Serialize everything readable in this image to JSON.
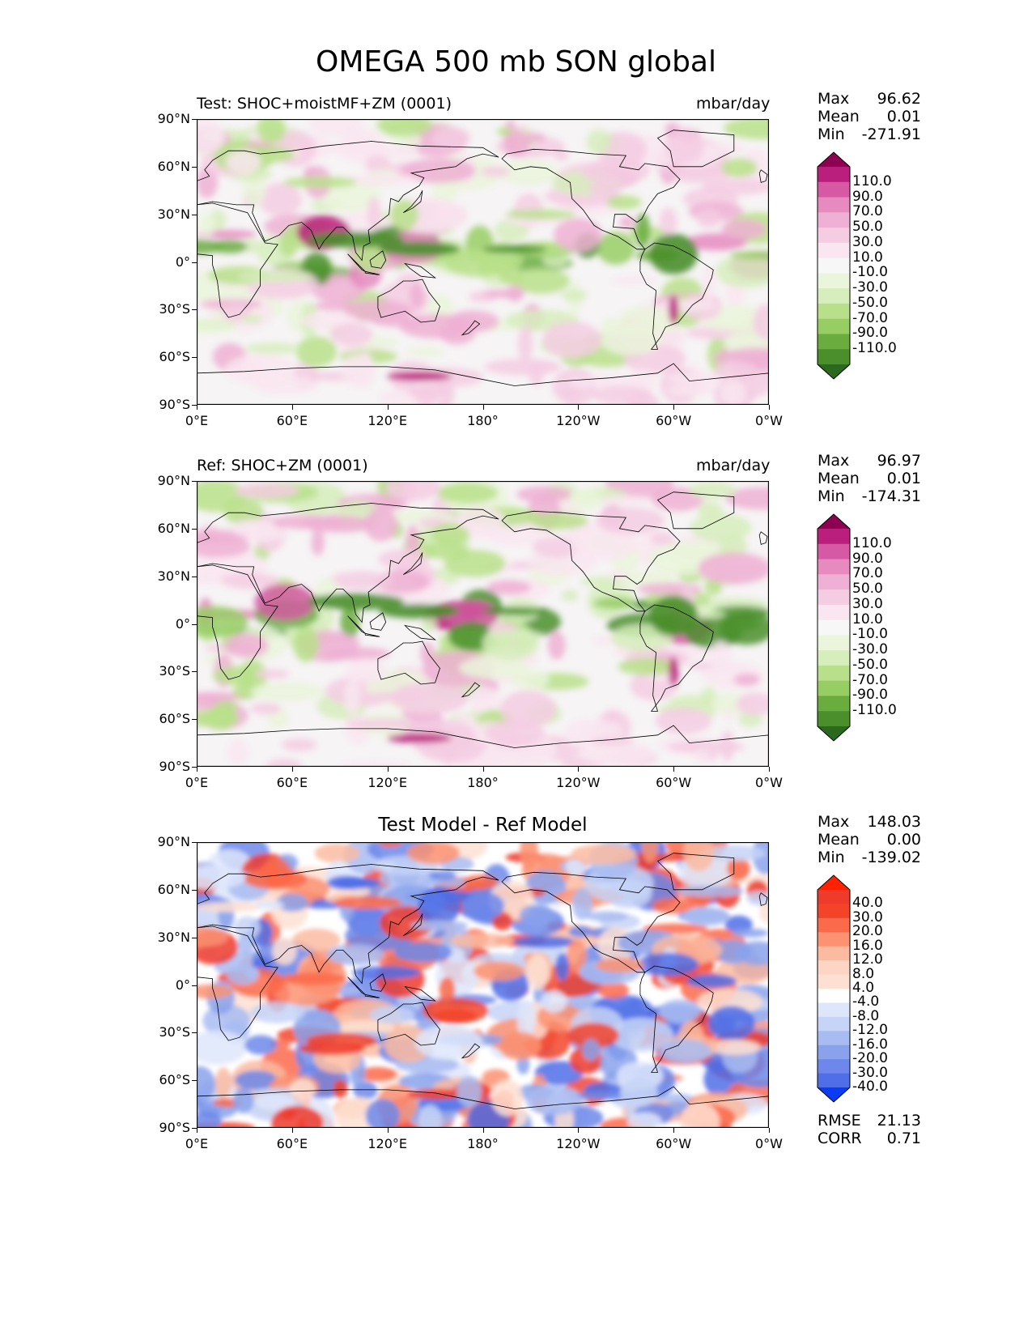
{
  "figure": {
    "title": "OMEGA 500 mb SON global"
  },
  "colors": {
    "pos_scale": [
      "#f7f7f7",
      "#f9e6f0",
      "#f4cde3",
      "#eeb0d4",
      "#e68ac0",
      "#d55aa3",
      "#bb1f7e",
      "#8e0152"
    ],
    "neg_scale": [
      "#f7f7f7",
      "#eaf5db",
      "#d6edbc",
      "#b8e08a",
      "#97ce64",
      "#6aac3e",
      "#4a8f2b",
      "#2b6a1c"
    ],
    "diff_pos": [
      "#ffffff",
      "#fee0d2",
      "#fcbba1",
      "#fc9272",
      "#fb6a4a",
      "#f3442a",
      "#ef3b2c",
      "#ff2200"
    ],
    "diff_neg": [
      "#ffffff",
      "#dee6fb",
      "#c6d4f7",
      "#a9bcf2",
      "#8aa2ec",
      "#6d88ea",
      "#4f6ee8",
      "#0b3cf5"
    ],
    "coast": "#000000"
  },
  "chart_data": [
    {
      "type": "heatmap",
      "id": "test",
      "title_left": "Test: SHOC+moistMF+ZM (0001)",
      "title_right": "mbar/day",
      "title_center": "",
      "yticks": [
        "90°N",
        "60°N",
        "30°N",
        "0°",
        "30°S",
        "60°S",
        "90°S"
      ],
      "xticks": [
        "0°E",
        "60°E",
        "120°E",
        "180°",
        "120°W",
        "60°W",
        "0°W"
      ],
      "stats": {
        "max_label": "Max",
        "max": "96.62",
        "mean_label": "Mean",
        "mean": "0.01",
        "min_label": "Min",
        "min": "-271.91"
      },
      "colorbar": {
        "levels": [
          "110.0",
          "90.0",
          "70.0",
          "50.0",
          "30.0",
          "10.0",
          "-10.0",
          "-30.0",
          "-50.0",
          "-70.0",
          "-90.0",
          "-110.0"
        ],
        "colors": [
          "#8e0152",
          "#bb1f7e",
          "#d55aa3",
          "#e68ac0",
          "#eeb0d4",
          "#f4cde3",
          "#f9e6f0",
          "#f7f7f7",
          "#eaf5db",
          "#d6edbc",
          "#b8e08a",
          "#97ce64",
          "#6aac3e",
          "#4a8f2b",
          "#2b6a1c"
        ]
      }
    },
    {
      "type": "heatmap",
      "id": "ref",
      "title_left": "Ref: SHOC+ZM (0001)",
      "title_right": "mbar/day",
      "title_center": "",
      "yticks": [
        "90°N",
        "60°N",
        "30°N",
        "0°",
        "30°S",
        "60°S",
        "90°S"
      ],
      "xticks": [
        "0°E",
        "60°E",
        "120°E",
        "180°",
        "120°W",
        "60°W",
        "0°W"
      ],
      "stats": {
        "max_label": "Max",
        "max": "96.97",
        "mean_label": "Mean",
        "mean": "0.01",
        "min_label": "Min",
        "min": "-174.31"
      },
      "colorbar": {
        "levels": [
          "110.0",
          "90.0",
          "70.0",
          "50.0",
          "30.0",
          "10.0",
          "-10.0",
          "-30.0",
          "-50.0",
          "-70.0",
          "-90.0",
          "-110.0"
        ],
        "colors": [
          "#8e0152",
          "#bb1f7e",
          "#d55aa3",
          "#e68ac0",
          "#eeb0d4",
          "#f4cde3",
          "#f9e6f0",
          "#f7f7f7",
          "#eaf5db",
          "#d6edbc",
          "#b8e08a",
          "#97ce64",
          "#6aac3e",
          "#4a8f2b",
          "#2b6a1c"
        ]
      }
    },
    {
      "type": "heatmap",
      "id": "diff",
      "title_left": "",
      "title_right": "",
      "title_center": "Test Model - Ref Model",
      "yticks": [
        "90°N",
        "60°N",
        "30°N",
        "0°",
        "30°S",
        "60°S",
        "90°S"
      ],
      "xticks": [
        "0°E",
        "60°E",
        "120°E",
        "180°",
        "120°W",
        "60°W",
        "0°W"
      ],
      "stats": {
        "max_label": "Max",
        "max": "148.03",
        "mean_label": "Mean",
        "mean": "0.00",
        "min_label": "Min",
        "min": "-139.02"
      },
      "colorbar": {
        "levels": [
          "40.0",
          "30.0",
          "20.0",
          "16.0",
          "12.0",
          "8.0",
          "4.0",
          "-4.0",
          "-8.0",
          "-12.0",
          "-16.0",
          "-20.0",
          "-30.0",
          "-40.0"
        ],
        "colors": [
          "#ff2200",
          "#ef3b2c",
          "#f3442a",
          "#fb6a4a",
          "#fc9272",
          "#fcbba1",
          "#fdd5c4",
          "#fee0d2",
          "#ffffff",
          "#dee6fb",
          "#c6d4f7",
          "#a9bcf2",
          "#8aa2ec",
          "#6d88ea",
          "#4f6ee8",
          "#0b3cf5"
        ]
      },
      "metrics": {
        "rmse_label": "RMSE",
        "rmse": "21.13",
        "corr_label": "CORR",
        "corr": "0.71"
      }
    }
  ]
}
